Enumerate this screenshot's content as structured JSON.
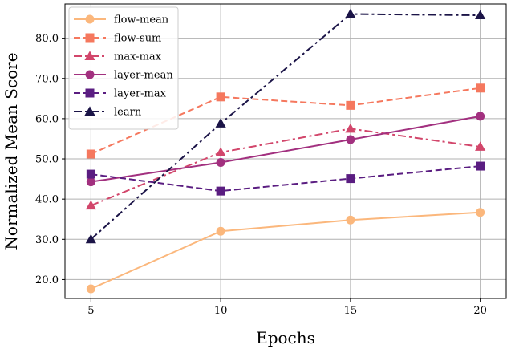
{
  "chart_data": {
    "type": "line",
    "title": "",
    "xlabel": "Epochs",
    "ylabel": "Normalized Mean Score",
    "x": [
      5,
      10,
      15,
      20
    ],
    "xlim": [
      4,
      21
    ],
    "ylim": [
      15.3,
      88.5
    ],
    "xticks": [
      "5",
      "10",
      "15",
      "20"
    ],
    "yticks": [
      "20.0",
      "30.0",
      "40.0",
      "50.0",
      "60.0",
      "70.0",
      "80.0"
    ],
    "grid": true,
    "legend_position": "top-left",
    "series": [
      {
        "name": "flow-mean",
        "values": [
          17.7,
          32.0,
          34.8,
          36.7
        ],
        "color": "#fbb77c",
        "dash": "solid",
        "marker": "circle"
      },
      {
        "name": "flow-sum",
        "values": [
          51.2,
          65.4,
          63.3,
          67.6
        ],
        "color": "#f5785e",
        "dash": "dashed",
        "marker": "square"
      },
      {
        "name": "max-max",
        "values": [
          38.4,
          51.6,
          57.5,
          53.0
        ],
        "color": "#d2466b",
        "dash": "dashdot",
        "marker": "triangle"
      },
      {
        "name": "layer-mean",
        "values": [
          44.3,
          49.1,
          54.8,
          60.6
        ],
        "color": "#a2307f",
        "dash": "solid",
        "marker": "circle"
      },
      {
        "name": "layer-max",
        "values": [
          46.2,
          42.0,
          45.1,
          48.2
        ],
        "color": "#5a1d81",
        "dash": "dashed",
        "marker": "square"
      },
      {
        "name": "learn",
        "values": [
          30.0,
          58.8,
          86.0,
          85.7
        ],
        "color": "#1b1447",
        "dash": "dashdot",
        "marker": "triangle"
      }
    ]
  }
}
